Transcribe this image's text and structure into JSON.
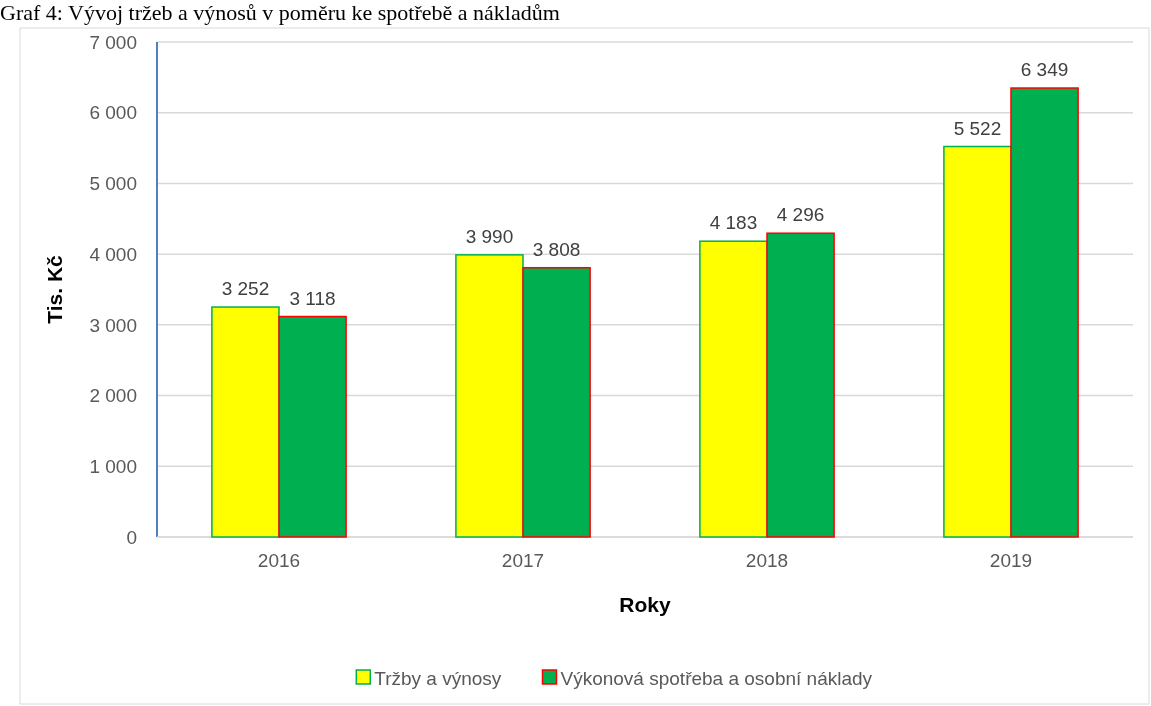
{
  "chart_data": {
    "type": "bar",
    "title": "Graf 4: Vývoj tržeb a výnosů v poměru ke spotřebě a nákladům",
    "xlabel": "Roky",
    "ylabel": "Tis. Kč",
    "categories": [
      "2016",
      "2017",
      "2018",
      "2019"
    ],
    "series": [
      {
        "name": "Tržby a výnosy",
        "color": "#ffff00",
        "values": [
          3252,
          3990,
          4183,
          5522
        ],
        "value_labels": [
          "3 252",
          "3 990",
          "4 183",
          "5 522"
        ]
      },
      {
        "name": "Výkonová spotřeba a osobní náklady",
        "color": "#00b050",
        "values": [
          3118,
          3808,
          4296,
          6349
        ],
        "value_labels": [
          "3 118",
          "3 808",
          "4 296",
          "6 349"
        ]
      }
    ],
    "ylim": [
      0,
      7000
    ],
    "yticks": [
      {
        "value": 0,
        "label": "0"
      },
      {
        "value": 1000,
        "label": "1 000"
      },
      {
        "value": 2000,
        "label": "2 000"
      },
      {
        "value": 3000,
        "label": "3 000"
      },
      {
        "value": 4000,
        "label": "4 000"
      },
      {
        "value": 5000,
        "label": "5 000"
      },
      {
        "value": 6000,
        "label": "6 000"
      },
      {
        "value": 7000,
        "label": "7 000"
      }
    ],
    "grid": "y",
    "legend": "bottom"
  }
}
